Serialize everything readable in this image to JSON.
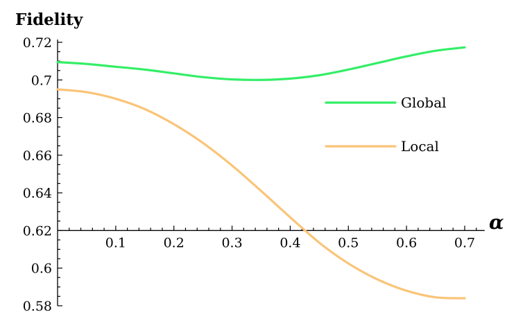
{
  "chart_data": {
    "type": "line",
    "ylabel": "Fidelity",
    "xlabel": "α",
    "xlim": [
      0,
      0.72
    ],
    "ylim": [
      0.58,
      0.72
    ],
    "x_axis_crosses_y_at": 0.62,
    "x_ticks": [
      0.1,
      0.2,
      0.3,
      0.4,
      0.5,
      0.6,
      0.7
    ],
    "x_tick_labels": [
      "0.1",
      "0.2",
      "0.3",
      "0.4",
      "0.5",
      "0.6",
      "0.7"
    ],
    "y_ticks": [
      0.58,
      0.6,
      0.62,
      0.64,
      0.66,
      0.68,
      0.7,
      0.72
    ],
    "y_tick_labels": [
      "0.58",
      "0.6",
      "0.62",
      "0.64",
      "0.66",
      "0.68",
      "0.7",
      "0.72"
    ],
    "grid": false,
    "legend_position": "right",
    "series": [
      {
        "name": "Global",
        "color": "#33ee66",
        "x": [
          0,
          0.05,
          0.1,
          0.15,
          0.2,
          0.25,
          0.3,
          0.35,
          0.4,
          0.45,
          0.5,
          0.55,
          0.6,
          0.65,
          0.7
        ],
        "y": [
          0.7095,
          0.7085,
          0.707,
          0.7055,
          0.7035,
          0.7015,
          0.7003,
          0.7,
          0.7007,
          0.7025,
          0.7055,
          0.709,
          0.7125,
          0.7155,
          0.7173
        ]
      },
      {
        "name": "Local",
        "color": "#fac478",
        "x": [
          0,
          0.05,
          0.1,
          0.15,
          0.2,
          0.25,
          0.3,
          0.35,
          0.4,
          0.45,
          0.5,
          0.55,
          0.6,
          0.65,
          0.7
        ],
        "y": [
          0.695,
          0.6935,
          0.69,
          0.6845,
          0.6765,
          0.6665,
          0.6545,
          0.641,
          0.627,
          0.6135,
          0.6025,
          0.594,
          0.588,
          0.5845,
          0.584
        ]
      }
    ]
  }
}
